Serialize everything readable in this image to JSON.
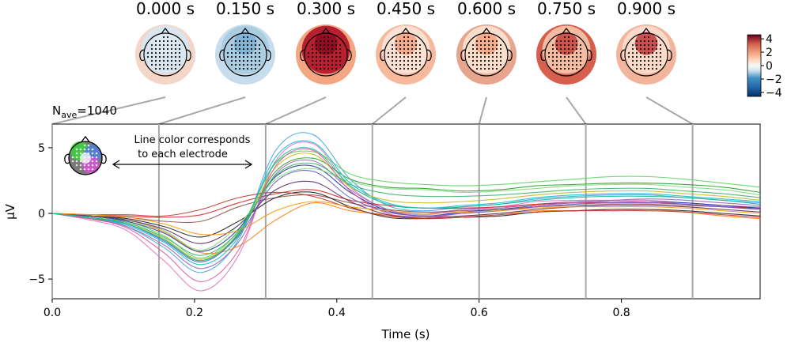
{
  "chart_data": {
    "type": "line",
    "xlabel": "Time (s)",
    "ylabel": "µV",
    "nave_label": "N",
    "nave_sub": "ave",
    "nave_value": "=1040",
    "xlim": [
      0.0,
      0.995
    ],
    "ylim": [
      -6.5,
      6.8
    ],
    "xticks": [
      {
        "v": 0.0,
        "label": "0.0"
      },
      {
        "v": 0.2,
        "label": "0.2"
      },
      {
        "v": 0.4,
        "label": "0.4"
      },
      {
        "v": 0.6,
        "label": "0.6"
      },
      {
        "v": 0.8,
        "label": "0.8"
      }
    ],
    "yticks": [
      {
        "v": 5,
        "label": "5"
      },
      {
        "v": 0,
        "label": "0"
      },
      {
        "v": -5,
        "label": "−5"
      }
    ],
    "annotation": {
      "line1": "Line color corresponds",
      "line2": "to each electrode"
    },
    "topomap_times": [
      {
        "t": 0.0,
        "label": "0.000 s"
      },
      {
        "t": 0.15,
        "label": "0.150 s"
      },
      {
        "t": 0.3,
        "label": "0.300 s"
      },
      {
        "t": 0.45,
        "label": "0.450 s"
      },
      {
        "t": 0.6,
        "label": "0.600 s"
      },
      {
        "t": 0.75,
        "label": "0.750 s"
      },
      {
        "t": 0.9,
        "label": "0.900 s"
      }
    ],
    "colorbar": {
      "range": [
        -4.6,
        4.6
      ],
      "ticks": [
        {
          "v": 4,
          "label": "4"
        },
        {
          "v": 2,
          "label": "2"
        },
        {
          "v": 0,
          "label": "0"
        },
        {
          "v": -2,
          "label": "−2"
        },
        {
          "v": -4,
          "label": "−4"
        }
      ],
      "colormap": "RdBu_r"
    },
    "topomap_fills": [
      {
        "center": "#d7e7f1",
        "edge": "#f3d6c8",
        "hot": "#dfeaf2"
      },
      {
        "center": "#a9cbe2",
        "edge": "#c7dcec",
        "hot": "#7fb0d4"
      },
      {
        "center": "#b2182b",
        "edge": "#f4a582",
        "hot": "#8b0a1f"
      },
      {
        "center": "#fbe3d6",
        "edge": "#f7b99c",
        "hot": "#f2a283"
      },
      {
        "center": "#fbe0d0",
        "edge": "#e8a58e",
        "hot": "#f4a582"
      },
      {
        "center": "#f6c1a6",
        "edge": "#d6604d",
        "hot": "#c8423c"
      },
      {
        "center": "#fbdccb",
        "edge": "#f2b49a",
        "hot": "#c0363b"
      }
    ],
    "series": [
      {
        "color": "#e377c2",
        "values": [
          0.0,
          -0.5,
          -1.3,
          -3.6,
          -5.9,
          -3.2,
          4.0,
          5.3,
          2.0,
          0.3,
          -0.1,
          0.3,
          0.5,
          0.9,
          1.0,
          1.0,
          1.0,
          0.8,
          0.6,
          0.5
        ]
      },
      {
        "color": "#4aa3df",
        "values": [
          0.0,
          -0.3,
          -1.0,
          -2.6,
          -4.5,
          -2.0,
          4.8,
          6.0,
          2.6,
          0.6,
          0.2,
          0.5,
          0.7,
          1.1,
          1.3,
          1.4,
          1.4,
          1.2,
          1.0,
          0.8
        ]
      },
      {
        "color": "#5fd35f",
        "values": [
          0.0,
          -0.2,
          -0.6,
          -1.7,
          -3.4,
          -1.3,
          3.8,
          4.7,
          3.0,
          2.4,
          2.2,
          2.1,
          2.2,
          2.4,
          2.6,
          2.8,
          2.8,
          2.6,
          2.3,
          2.0
        ]
      },
      {
        "color": "#2ca02c",
        "values": [
          0.0,
          -0.4,
          -0.8,
          -2.0,
          -3.6,
          -1.6,
          3.2,
          4.2,
          2.6,
          2.0,
          1.9,
          1.7,
          1.8,
          2.1,
          2.2,
          2.3,
          2.3,
          2.2,
          2.0,
          1.6
        ]
      },
      {
        "color": "#9467bd",
        "values": [
          0.0,
          -0.4,
          -1.0,
          -2.4,
          -4.2,
          -2.2,
          3.0,
          4.0,
          1.8,
          0.3,
          0.0,
          0.3,
          0.4,
          0.7,
          0.9,
          1.0,
          1.1,
          1.0,
          0.8,
          0.6
        ]
      },
      {
        "color": "#8c564b",
        "values": [
          0.0,
          -0.2,
          -0.3,
          -0.6,
          -0.6,
          0.5,
          1.2,
          1.4,
          0.8,
          0.3,
          0.1,
          0.2,
          0.3,
          0.5,
          0.6,
          0.7,
          0.7,
          0.6,
          0.5,
          0.4
        ]
      },
      {
        "color": "#d62728",
        "values": [
          0.0,
          -0.1,
          -0.2,
          -0.3,
          -0.1,
          0.8,
          1.5,
          1.8,
          1.0,
          0.6,
          0.4,
          0.4,
          0.5,
          0.7,
          0.8,
          0.8,
          0.8,
          0.7,
          0.5,
          0.4
        ]
      },
      {
        "color": "#ff7f0e",
        "values": [
          0.0,
          -0.2,
          -0.5,
          -1.4,
          -3.0,
          -2.5,
          -0.5,
          0.8,
          0.2,
          -0.1,
          -0.3,
          -0.2,
          0.0,
          0.2,
          0.2,
          0.3,
          0.3,
          0.1,
          -0.2,
          -0.4
        ]
      },
      {
        "color": "#17becf",
        "values": [
          0.0,
          -0.3,
          -0.9,
          -2.2,
          -3.9,
          -1.8,
          4.3,
          5.4,
          2.3,
          0.8,
          0.4,
          0.6,
          0.8,
          1.2,
          1.4,
          1.5,
          1.5,
          1.3,
          1.1,
          0.9
        ]
      },
      {
        "color": "#1f3a93",
        "values": [
          0.0,
          -0.2,
          -0.6,
          -1.5,
          -2.9,
          -1.2,
          2.8,
          3.6,
          1.6,
          0.2,
          -0.2,
          0.1,
          0.3,
          0.6,
          0.8,
          0.9,
          0.9,
          0.8,
          0.6,
          0.4
        ]
      },
      {
        "color": "#222222",
        "values": [
          0.0,
          -0.2,
          -0.4,
          -1.0,
          -1.8,
          -0.6,
          1.2,
          1.6,
          0.5,
          -0.3,
          -0.4,
          -0.3,
          -0.2,
          0.1,
          0.2,
          0.3,
          0.3,
          0.2,
          0.0,
          -0.2
        ]
      },
      {
        "color": "#bcbd22",
        "values": [
          0.0,
          -0.3,
          -0.7,
          -1.9,
          -3.5,
          -1.5,
          3.5,
          4.5,
          2.0,
          1.0,
          0.8,
          0.9,
          1.1,
          1.4,
          1.6,
          1.7,
          1.7,
          1.5,
          1.3,
          1.0
        ]
      },
      {
        "color": "#c0392b",
        "values": [
          0.0,
          -0.1,
          -0.1,
          -0.2,
          0.3,
          1.2,
          1.6,
          1.3,
          0.4,
          -0.2,
          -0.4,
          -0.3,
          -0.1,
          0.1,
          0.2,
          0.2,
          0.2,
          0.1,
          -0.1,
          -0.3
        ]
      },
      {
        "color": "#e056a0",
        "values": [
          0.0,
          -0.4,
          -1.1,
          -3.0,
          -5.2,
          -2.8,
          3.6,
          4.8,
          1.7,
          0.0,
          -0.3,
          0.0,
          0.2,
          0.6,
          0.8,
          0.9,
          0.9,
          0.7,
          0.5,
          0.3
        ]
      },
      {
        "color": "#6a5acd",
        "values": [
          0.0,
          -0.3,
          -0.8,
          -2.1,
          -3.7,
          -1.7,
          2.4,
          3.2,
          1.2,
          0.1,
          -0.2,
          0.0,
          0.2,
          0.5,
          0.7,
          0.8,
          0.8,
          0.7,
          0.5,
          0.3
        ]
      },
      {
        "color": "#7fdc7f",
        "values": [
          0.0,
          -0.2,
          -0.5,
          -1.3,
          -2.8,
          -0.9,
          2.6,
          3.4,
          2.4,
          1.9,
          1.8,
          1.6,
          1.7,
          1.9,
          2.1,
          2.2,
          2.2,
          2.0,
          1.8,
          1.4
        ]
      },
      {
        "color": "#5b2c6f",
        "values": [
          0.0,
          -0.2,
          -0.5,
          -1.2,
          -2.3,
          -0.9,
          1.8,
          2.4,
          0.9,
          -0.1,
          -0.3,
          -0.2,
          0.0,
          0.3,
          0.5,
          0.6,
          0.6,
          0.5,
          0.3,
          0.1
        ]
      },
      {
        "color": "#f39c12",
        "values": [
          0.0,
          -0.1,
          -0.3,
          -0.8,
          -1.6,
          -1.3,
          0.2,
          0.9,
          0.5,
          0.2,
          0.0,
          0.1,
          0.2,
          0.4,
          0.5,
          0.5,
          0.5,
          0.4,
          0.2,
          0.0
        ]
      },
      {
        "color": "#3cb371",
        "values": [
          0.0,
          -0.3,
          -0.7,
          -1.8,
          -3.2,
          -1.4,
          2.9,
          3.8,
          2.2,
          1.5,
          1.3,
          1.3,
          1.4,
          1.6,
          1.8,
          1.9,
          1.9,
          1.7,
          1.5,
          1.2
        ]
      },
      {
        "color": "#1abc9c",
        "values": [
          0.0,
          -0.3,
          -0.8,
          -2.0,
          -3.6,
          -1.5,
          3.9,
          4.9,
          2.1,
          0.7,
          0.4,
          0.5,
          0.7,
          1.0,
          1.2,
          1.3,
          1.3,
          1.2,
          1.0,
          0.7
        ]
      }
    ]
  }
}
